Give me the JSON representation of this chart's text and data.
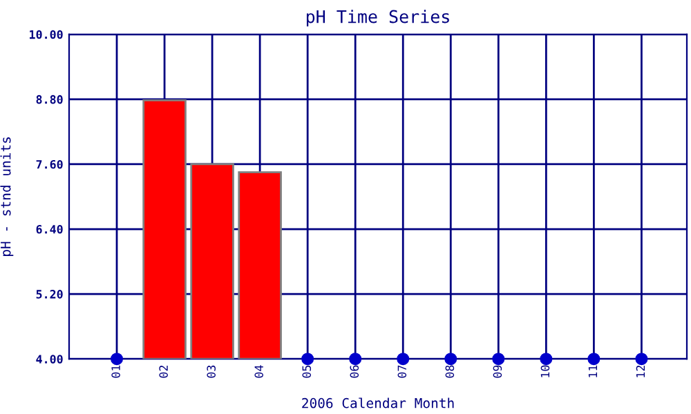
{
  "chart_data": {
    "type": "bar",
    "title": "pH Time Series",
    "xlabel": "2006 Calendar Month",
    "ylabel": "pH - stnd units",
    "categories": [
      "01",
      "02",
      "03",
      "04",
      "05",
      "06",
      "07",
      "08",
      "09",
      "10",
      "11",
      "12"
    ],
    "series": [
      {
        "color": "#ff0000",
        "values": [
          null,
          8.78,
          7.6,
          7.45,
          null,
          null,
          null,
          null,
          null,
          null,
          null,
          null
        ]
      },
      {
        "type": "scatter",
        "color": "#0000cc",
        "marker": "circle",
        "values": [
          4.0,
          null,
          null,
          null,
          4.0,
          4.0,
          4.0,
          4.0,
          4.0,
          4.0,
          4.0,
          4.0
        ]
      }
    ],
    "ylim": [
      4.0,
      10.0
    ],
    "yticks": [
      {
        "value": 4.0,
        "label": "4.00"
      },
      {
        "value": 5.2,
        "label": "5.20"
      },
      {
        "value": 6.4,
        "label": "6.40"
      },
      {
        "value": 7.6,
        "label": "7.60"
      },
      {
        "value": 8.8,
        "label": "8.80"
      },
      {
        "value": 10.0,
        "label": "10.00"
      }
    ],
    "grid": true
  }
}
